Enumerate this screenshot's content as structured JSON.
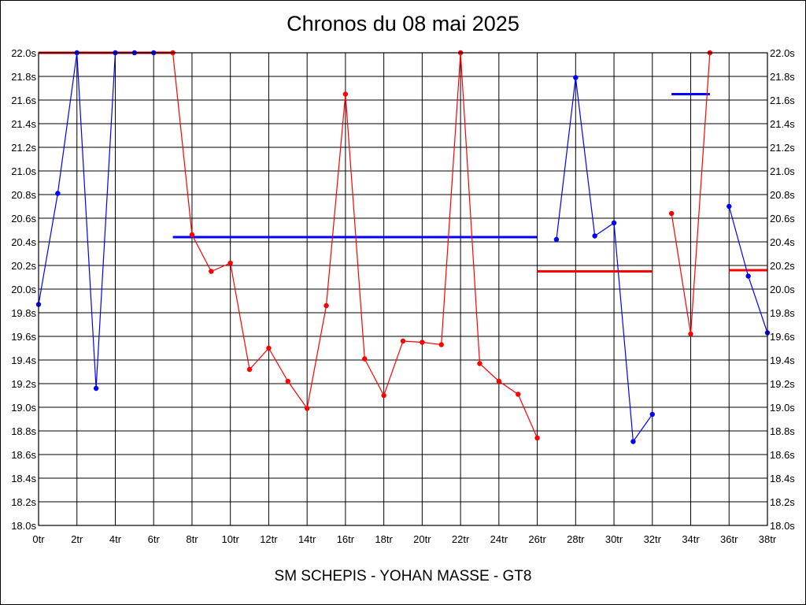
{
  "chart_data": {
    "type": "line",
    "title": "Chronos du 08 mai 2025",
    "footer": "SM SCHEPIS - YOHAN MASSE - GT8",
    "xlim": [
      0,
      38
    ],
    "ylim": [
      18.0,
      22.0
    ],
    "x_tick_step": 2,
    "x_tick_suffix": "tr",
    "y_tick_step": 0.2,
    "y_tick_suffix": "s",
    "grid": true,
    "colors": {
      "red": "#ff0000",
      "blue": "#0000ff",
      "axis": "#000000"
    },
    "series": [
      {
        "color": "#0000ff",
        "points": [
          [
            0,
            19.87
          ],
          [
            1,
            20.81
          ],
          [
            2,
            22.0
          ],
          [
            3,
            19.16
          ],
          [
            4,
            22.0
          ],
          [
            5,
            22.0
          ],
          [
            6,
            22.0
          ]
        ]
      },
      {
        "color": "#ff0000",
        "points": [
          [
            7,
            22.0
          ],
          [
            8,
            20.46
          ],
          [
            9,
            20.15
          ],
          [
            10,
            20.22
          ],
          [
            11,
            19.32
          ],
          [
            12,
            19.5
          ],
          [
            13,
            19.22
          ],
          [
            14,
            18.99
          ],
          [
            15,
            19.86
          ],
          [
            16,
            21.65
          ],
          [
            17,
            19.41
          ],
          [
            18,
            19.1
          ],
          [
            19,
            19.56
          ],
          [
            20,
            19.55
          ],
          [
            21,
            19.53
          ],
          [
            22,
            22.0
          ],
          [
            23,
            19.37
          ],
          [
            24,
            19.22
          ],
          [
            25,
            19.11
          ],
          [
            26,
            18.74
          ]
        ]
      },
      {
        "color": "#0000ff",
        "points": [
          [
            27,
            20.42
          ],
          [
            28,
            21.79
          ],
          [
            29,
            20.45
          ],
          [
            30,
            20.56
          ],
          [
            31,
            18.71
          ],
          [
            32,
            18.94
          ]
        ]
      },
      {
        "color": "#ff0000",
        "points": [
          [
            33,
            20.64
          ],
          [
            34,
            19.62
          ],
          [
            35,
            22.0
          ]
        ]
      },
      {
        "color": "#0000ff",
        "points": [
          [
            36,
            20.7
          ],
          [
            37,
            20.11
          ],
          [
            38,
            19.63
          ]
        ]
      }
    ],
    "averages": [
      {
        "color": "#ff0000",
        "x": [
          0,
          7
        ],
        "y": 22.0
      },
      {
        "color": "#0000ff",
        "x": [
          7,
          26
        ],
        "y": 20.44
      },
      {
        "color": "#ff0000",
        "x": [
          26,
          32
        ],
        "y": 20.15
      },
      {
        "color": "#0000ff",
        "x": [
          33,
          35
        ],
        "y": 21.65
      },
      {
        "color": "#ff0000",
        "x": [
          36,
          38
        ],
        "y": 20.16
      }
    ]
  }
}
